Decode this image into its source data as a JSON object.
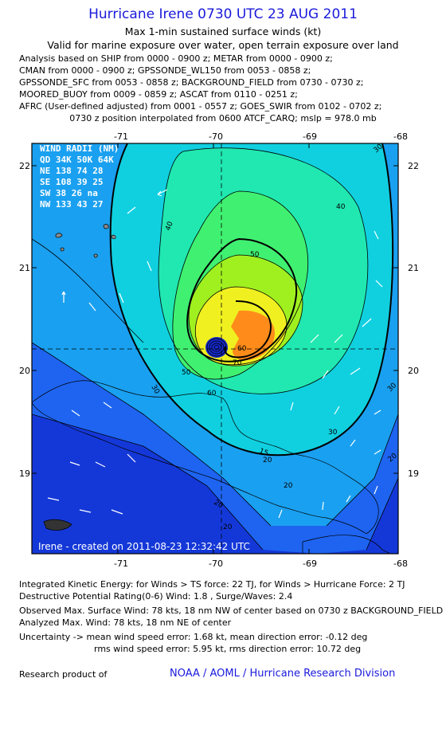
{
  "header": {
    "title": "Hurricane Irene 0730 UTC 23 AUG 2011",
    "subtitle1": "Max 1-min sustained surface winds (kt)",
    "subtitle2": "Valid for marine exposure over water, open terrain exposure over land"
  },
  "analysis_lines": [
    "Analysis based on SHIP from 0000 - 0900 z; METAR from 0000 - 0900 z;",
    "CMAN from 0000 - 0900 z; GPSSONDE_WL150 from 0053 - 0858 z;",
    "GPSSONDE_SFC from 0053 - 0858 z; BACKGROUND_FIELD from 0730 - 0730 z;",
    "MOORED_BUOY from 0009 - 0859 z; ASCAT from 0110 - 0251 z;",
    "AFRC (User-defined adjusted) from 0001 - 0557 z; GOES_SWIR from 0102 - 0702 z;"
  ],
  "position_line": "0730 z position interpolated from 0600 ATCF_CARQ; mslp = 978.0 mb",
  "axes": {
    "x_ticks": [
      "-71",
      "-70",
      "-69",
      "-68"
    ],
    "y_ticks": [
      "22",
      "21",
      "20",
      "19"
    ]
  },
  "wind_radii": {
    "title": "WIND RADII (NM)",
    "header": "QD  34K  50K  64K",
    "rows": [
      "NE  138  74  28",
      "SE  108  39  25",
      "SW   38  26  na",
      "NW  133  43  27"
    ]
  },
  "contour_labels": [
    "30",
    "40",
    "50",
    "60",
    "70",
    "30",
    "40",
    "50",
    "60",
    "30",
    "20",
    "20",
    "15",
    "20",
    "30",
    "20",
    "20"
  ],
  "created_label": "Irene - created on 2011-08-23 12:32:42 UTC",
  "footer": {
    "ike": "Integrated Kinetic Energy:  for Winds > TS force: 22 TJ,  for Winds > Hurricane Force: 2 TJ",
    "dpr": "Destructive Potential Rating(0-6)   Wind: 1.8 , Surge/Waves: 2.4",
    "observed": "Observed Max. Surface Wind: 78 kts, 18 nm NW of center based on 0730 z BACKGROUND_FIELD",
    "analyzed": "Analyzed Max. Wind: 78 kts, 18 nm NE of center",
    "uncert1": "Uncertainty -> mean wind speed error: 1.68 kt,   mean direction error:  -0.12 deg",
    "uncert2": "rms wind speed error: 5.95 kt,   rms direction error: 10.72 deg",
    "research": "Research product of",
    "credit": "NOAA / AOML / Hurricane Research Division"
  },
  "colors": {
    "title": "#1a1adc",
    "deep_blue": "#1438d8",
    "blue": "#1e64f0",
    "light_blue": "#1aa0f0",
    "cyan": "#10d0e0",
    "aqua": "#20e8b0",
    "green": "#40f070",
    "yellow_green": "#a0f020",
    "yellow": "#f0f020",
    "orange": "#ff8c1a",
    "center": "#1428c8"
  }
}
